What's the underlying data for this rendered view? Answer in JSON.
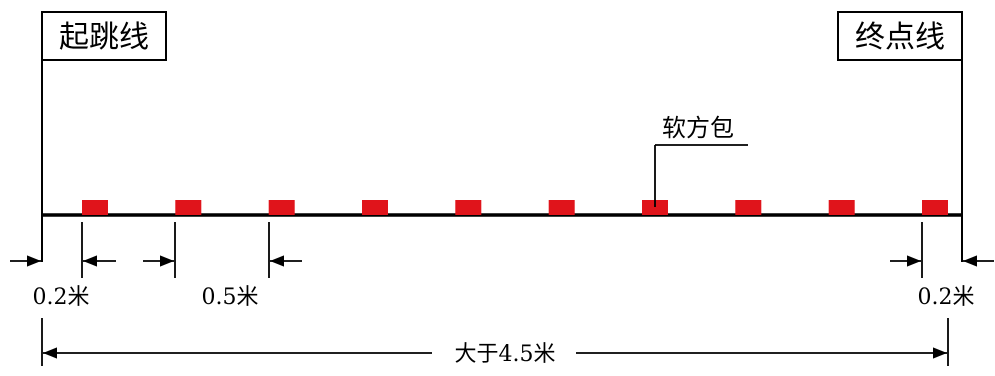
{
  "start_line_label": "起跳线",
  "end_line_label": "终点线",
  "soft_bag_label": "软方包",
  "dim_start_gap": "0.2米",
  "dim_spacing": "0.5米",
  "dim_end_gap": "0.2米",
  "dim_total": "大于4.5米",
  "bag_count": 10,
  "colors": {
    "bag": "#e0141b",
    "line": "#000000"
  }
}
